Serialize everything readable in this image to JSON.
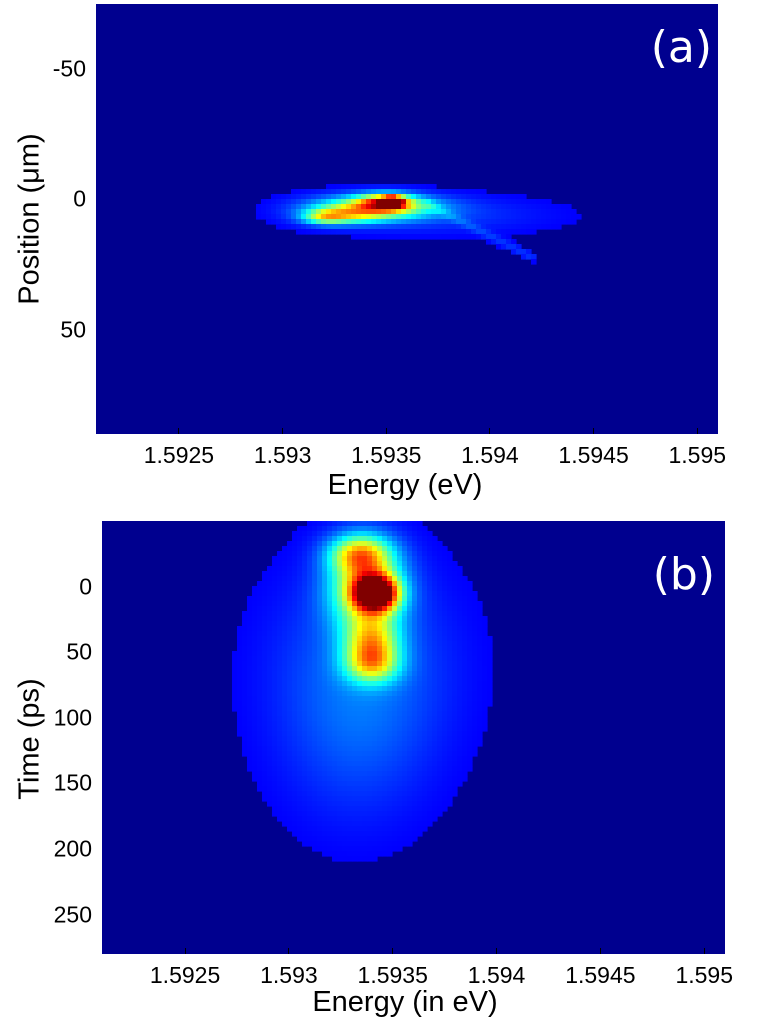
{
  "chart_data": [
    {
      "type": "heatmap",
      "panel_label": "(a)",
      "xlabel": "Energy (eV)",
      "ylabel": "Position (μm)",
      "x_ticks": [
        "1.5925",
        "1.593",
        "1.5935",
        "1.594",
        "1.5945",
        "1.595"
      ],
      "x_tick_values": [
        1.5925,
        1.593,
        1.5935,
        1.594,
        1.5945,
        1.595
      ],
      "y_ticks": [
        "-50",
        "0",
        "50"
      ],
      "y_tick_values": [
        -50,
        0,
        50
      ],
      "xlim": [
        1.5921,
        1.5951
      ],
      "ylim": [
        -75,
        90
      ],
      "y_inverted": true,
      "colormap": "jet",
      "peak": {
        "x": 1.59353,
        "y": 1,
        "intensity": 1.0
      },
      "blobs": [
        {
          "x": 1.59353,
          "y": 1,
          "sx": 3e-05,
          "sy": 1.3,
          "a": 1.0
        },
        {
          "x": 1.5935,
          "y": 1,
          "sx": 9e-05,
          "sy": 2.2,
          "a": 0.55
        },
        {
          "x": 1.59345,
          "y": 3,
          "sx": 0.0002,
          "sy": 3.2,
          "a": 0.5
        },
        {
          "x": 1.5933,
          "y": 6,
          "sx": 0.00013,
          "sy": 2.4,
          "a": 0.32
        },
        {
          "x": 1.5932,
          "y": 7,
          "sx": 7e-05,
          "sy": 1.8,
          "a": 0.28
        },
        {
          "x": 1.5937,
          "y": 6,
          "sx": 0.0004,
          "sy": 5.0,
          "a": 0.08
        }
      ],
      "streaks": [
        {
          "x0": 1.5937,
          "y0": 2,
          "x1": 1.5942,
          "y1": 22,
          "a": 0.07,
          "w": 3.0
        }
      ]
    },
    {
      "type": "heatmap",
      "panel_label": "(b)",
      "xlabel": "Energy (in eV)",
      "ylabel": "Time (ps)",
      "x_ticks": [
        "1.5925",
        "1.593",
        "1.5935",
        "1.594",
        "1.5945",
        "1.595"
      ],
      "x_tick_values": [
        1.5925,
        1.593,
        1.5935,
        1.594,
        1.5945,
        1.595
      ],
      "y_ticks": [
        "0",
        "50",
        "100",
        "150",
        "200",
        "250"
      ],
      "y_tick_values": [
        0,
        50,
        100,
        150,
        200,
        250
      ],
      "xlim": [
        1.5921,
        1.5951
      ],
      "ylim": [
        -50,
        280
      ],
      "y_inverted": true,
      "colormap": "jet",
      "peak": {
        "x": 1.59342,
        "y": 5,
        "intensity": 1.0
      },
      "blobs": [
        {
          "x": 1.59342,
          "y": 5,
          "sx": 7e-05,
          "sy": 9,
          "a": 1.0
        },
        {
          "x": 1.59337,
          "y": 0,
          "sx": 0.00012,
          "sy": 22,
          "a": 0.55
        },
        {
          "x": 1.59334,
          "y": -25,
          "sx": 0.0001,
          "sy": 10,
          "a": 0.45
        },
        {
          "x": 1.5934,
          "y": 43,
          "sx": 9e-05,
          "sy": 14,
          "a": 0.45
        },
        {
          "x": 1.5934,
          "y": 60,
          "sx": 9e-05,
          "sy": 10,
          "a": 0.35
        },
        {
          "x": 1.59336,
          "y": 60,
          "sx": 0.0003,
          "sy": 55,
          "a": 0.12
        },
        {
          "x": 1.59332,
          "y": 120,
          "sx": 0.00025,
          "sy": 50,
          "a": 0.06
        }
      ],
      "streaks": []
    }
  ],
  "colors": {
    "background": "#00008f",
    "panel_label": "#ffffff"
  }
}
